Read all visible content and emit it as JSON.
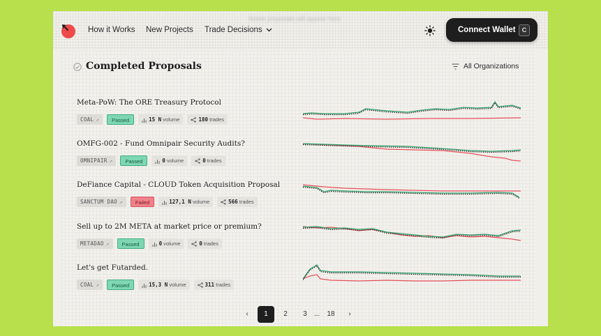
{
  "header": {
    "banner": "Active proposals will appear here",
    "nav": [
      "How it Works",
      "New Projects",
      "Trade Decisions"
    ],
    "connect_label": "Connect Wallet",
    "connect_shortcut": "C"
  },
  "section": {
    "title": "Completed Proposals",
    "filter_label": "All Organizations"
  },
  "colors": {
    "pass": "#2f9e6a",
    "fail": "#e8505b",
    "passed_badge": "#7fd6b2",
    "failed_badge": "#f0818b"
  },
  "proposals": [
    {
      "title": "Meta-PoW: The ORE Treasury Protocol",
      "org": "COAL",
      "status": "Passed",
      "volume": "15 N",
      "volume_label": "volume",
      "trades": "180",
      "trades_label": "trades"
    },
    {
      "title": "OMFG-002 - Fund Omnipair Security Audits?",
      "org": "OMNIPAIR",
      "status": "Passed",
      "volume": "0",
      "volume_label": "volume",
      "trades": "0",
      "trades_label": "trades"
    },
    {
      "title": "DeFiance Capital - CLOUD Token Acquisition Proposal",
      "org": "SANCTUM DAO",
      "status": "Failed",
      "volume": "127,1 N",
      "volume_label": "volume",
      "trades": "566",
      "trades_label": "trades"
    },
    {
      "title": "Sell up to 2M META at market price or premium?",
      "org": "METADAO",
      "status": "Passed",
      "volume": "0",
      "volume_label": "volume",
      "trades": "0",
      "trades_label": "trades"
    },
    {
      "title": "Let's get Futarded.",
      "org": "COAL",
      "status": "Passed",
      "volume": "15,3 N",
      "volume_label": "volume",
      "trades": "311",
      "trades_label": "trades"
    }
  ],
  "pagination": {
    "prev": "‹",
    "pages": [
      "1",
      "2",
      "3"
    ],
    "ellipsis": "...",
    "last": "18",
    "next": "›",
    "current": "1"
  }
}
